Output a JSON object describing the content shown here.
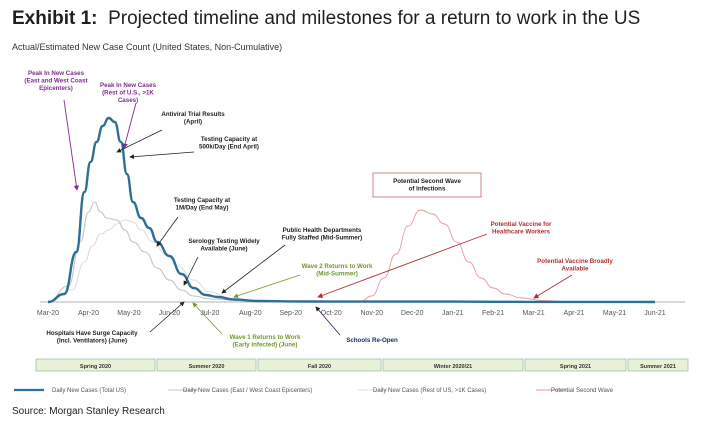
{
  "title_prefix": "Exhibit 1:",
  "title_text": "Projected timeline and milestones for a return to work in the US",
  "subtitle": "Actual/Estimated New Case Count (United States, Non-Cumulative)",
  "source": "Source: Morgan Stanley Research",
  "colors": {
    "total": "#2e6f96",
    "east_west": "#c4c4c4",
    "rest": "#dddddd",
    "second_wave": "#e69a9a",
    "purple": "#7a2f8f",
    "red": "#b03030",
    "green": "#6f9a2a",
    "season_fill": "#e9f2d6",
    "season_stroke": "#7fae9a"
  },
  "chart_data": {
    "type": "line",
    "x_labels": [
      "Mar-20",
      "Apr-20",
      "May-20",
      "Jun-20",
      "Jul-20",
      "Aug-20",
      "Sep-20",
      "Oct-20",
      "Nov-20",
      "Dec-20",
      "Jan-21",
      "Feb-21",
      "Mar-21",
      "Apr-21",
      "May-21",
      "Jun-21"
    ],
    "xlim_months": [
      0,
      15
    ],
    "ylim": [
      0,
      100
    ],
    "series": [
      {
        "name": "Daily New Cases (Total US)",
        "key": "total",
        "points": [
          [
            0,
            0
          ],
          [
            0.4,
            4
          ],
          [
            0.7,
            25
          ],
          [
            0.9,
            55
          ],
          [
            1.05,
            70
          ],
          [
            1.2,
            80
          ],
          [
            1.35,
            88
          ],
          [
            1.5,
            92
          ],
          [
            1.65,
            90
          ],
          [
            1.8,
            80
          ],
          [
            1.95,
            64
          ],
          [
            2.1,
            50
          ],
          [
            2.3,
            42
          ],
          [
            2.5,
            37
          ],
          [
            2.7,
            30
          ],
          [
            3.0,
            23
          ],
          [
            3.3,
            14
          ],
          [
            3.6,
            7
          ],
          [
            3.9,
            3.5
          ],
          [
            4.2,
            2.5
          ],
          [
            4.6,
            1.2
          ],
          [
            5.2,
            0.5
          ],
          [
            6,
            0.3
          ],
          [
            7,
            0.2
          ],
          [
            8,
            0.2
          ],
          [
            9,
            0.2
          ],
          [
            10,
            0.2
          ],
          [
            11,
            0.1
          ],
          [
            12,
            0.05
          ],
          [
            15,
            0
          ]
        ]
      },
      {
        "name": "Daily New Cases (East / West Coast Epicenters)",
        "key": "east_west",
        "points": [
          [
            0,
            0
          ],
          [
            0.5,
            8
          ],
          [
            0.8,
            30
          ],
          [
            1.0,
            45
          ],
          [
            1.15,
            50
          ],
          [
            1.3,
            45
          ],
          [
            1.45,
            42
          ],
          [
            1.7,
            41
          ],
          [
            1.9,
            36
          ],
          [
            2.1,
            30
          ],
          [
            2.4,
            25
          ],
          [
            2.7,
            17
          ],
          [
            3.0,
            11
          ],
          [
            3.3,
            6
          ],
          [
            3.6,
            3
          ],
          [
            4.0,
            1.5
          ],
          [
            5,
            0.5
          ],
          [
            7,
            0
          ]
        ]
      },
      {
        "name": "Daily New Cases (Rest of US, >1K Cases)",
        "key": "rest",
        "points": [
          [
            0,
            0
          ],
          [
            0.6,
            6
          ],
          [
            0.9,
            20
          ],
          [
            1.1,
            28
          ],
          [
            1.3,
            34
          ],
          [
            1.5,
            36
          ],
          [
            1.7,
            39
          ],
          [
            1.9,
            41
          ],
          [
            2.1,
            40
          ],
          [
            2.3,
            36
          ],
          [
            2.6,
            30
          ],
          [
            2.9,
            24
          ],
          [
            3.2,
            18
          ],
          [
            3.6,
            11
          ],
          [
            4.0,
            5
          ],
          [
            4.5,
            2
          ],
          [
            5.2,
            0.6
          ],
          [
            7,
            0
          ]
        ]
      },
      {
        "name": "Potential Second Wave",
        "key": "second_wave",
        "points": [
          [
            7.7,
            0
          ],
          [
            8.0,
            3
          ],
          [
            8.3,
            12
          ],
          [
            8.6,
            24
          ],
          [
            8.9,
            38
          ],
          [
            9.2,
            46
          ],
          [
            9.5,
            44
          ],
          [
            9.8,
            39
          ],
          [
            10.1,
            30
          ],
          [
            10.4,
            20
          ],
          [
            10.7,
            12
          ],
          [
            11.0,
            7
          ],
          [
            11.3,
            4
          ],
          [
            11.7,
            2
          ],
          [
            12.2,
            0.8
          ],
          [
            13,
            0
          ]
        ]
      }
    ],
    "seasons": [
      "Spring 2020",
      "Summer 2020",
      "Fall 2020",
      "Winter 2020/21",
      "Spring 2021",
      "Summer 2021"
    ],
    "annotations": {
      "peak_epicenters": "Peak In New Cases (East and West Coast Epicenters)",
      "peak_rest": "Peak In New Cases (Rest of U.S., >1K Cases)",
      "antiviral": "Antiviral Trial Results (April)",
      "testing_500k": "Testing Capacity at 500k/Day (End April)",
      "testing_1m": "Testing Capacity at 1M/Day (End May)",
      "serology": "Serology Testing Widely Available (June)",
      "public_health": "Public Health Departments Fully Staffed (Mid-Summer)",
      "wave2": "Wave 2 Returns to Work (Mid-Summer)",
      "second_wave_box": "Potential Second Wave of Infections",
      "vaccine_hcw": "Potential Vaccine for Healthcare Workers",
      "vaccine_broad": "Potential Vaccine Broadly Available",
      "hospitals": "Hospitals Have Surge Capacity (Incl. Ventilators) (June)",
      "wave1": "Wave 1 Returns to Work (Early Infected) (June)",
      "schools": "Schools Re-Open"
    }
  }
}
